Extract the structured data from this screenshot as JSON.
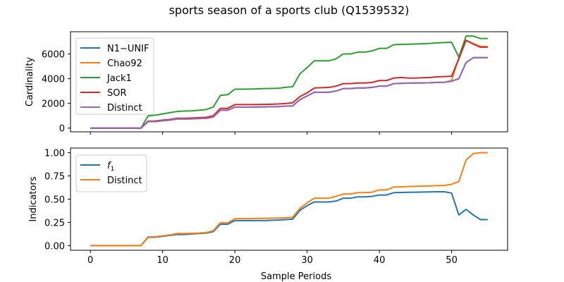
{
  "title": "sports season of a sports club (Q1539532)",
  "chart_data": [
    {
      "type": "line",
      "ylabel": "Cardinality",
      "xlabel": "",
      "xlim": [
        -2.75,
        57.75
      ],
      "ylim": [
        -300,
        7800
      ],
      "xticks": [
        0,
        10,
        20,
        30,
        40,
        50
      ],
      "yticks": [
        0,
        2000,
        4000,
        6000
      ],
      "ytick_labels": [
        "0",
        "2000",
        "4000",
        "6000"
      ],
      "legend_position": "upper-left",
      "x": [
        0,
        1,
        2,
        3,
        4,
        5,
        6,
        7,
        8,
        9,
        10,
        11,
        12,
        13,
        14,
        15,
        16,
        17,
        18,
        19,
        20,
        21,
        22,
        23,
        24,
        25,
        26,
        27,
        28,
        29,
        30,
        31,
        32,
        33,
        34,
        35,
        36,
        37,
        38,
        39,
        40,
        41,
        42,
        43,
        44,
        45,
        46,
        47,
        48,
        49,
        50,
        51,
        52,
        53,
        54,
        55
      ],
      "series": [
        {
          "name": "N1−UNIF",
          "color": "#1f77b4",
          "values": [
            0,
            0,
            0,
            0,
            0,
            0,
            0,
            0,
            530,
            530,
            600,
            650,
            740,
            740,
            750,
            780,
            790,
            900,
            1450,
            1450,
            1700,
            1700,
            1700,
            1710,
            1720,
            1730,
            1740,
            1780,
            1800,
            2300,
            2600,
            2900,
            2900,
            2900,
            3000,
            3200,
            3200,
            3250,
            3250,
            3300,
            3400,
            3400,
            3600,
            3620,
            3640,
            3650,
            3660,
            3670,
            3700,
            3710,
            3800,
            4000,
            5300,
            5700,
            5700,
            5700
          ]
        },
        {
          "name": "Chao92",
          "color": "#ff7f0e",
          "values": [
            0,
            0,
            0,
            0,
            0,
            0,
            0,
            0,
            530,
            530,
            600,
            650,
            740,
            740,
            750,
            780,
            790,
            900,
            1450,
            1450,
            1700,
            1700,
            1700,
            1710,
            1720,
            1730,
            1740,
            1780,
            1800,
            2300,
            2600,
            2900,
            2900,
            2900,
            3000,
            3200,
            3200,
            3250,
            3250,
            3300,
            3400,
            3400,
            3600,
            3620,
            3640,
            3650,
            3660,
            3670,
            3700,
            3710,
            3850,
            5700,
            7100,
            6850,
            6600,
            6600
          ]
        },
        {
          "name": "Jack1",
          "color": "#2ca02c",
          "values": [
            0,
            0,
            0,
            0,
            0,
            0,
            0,
            0,
            1000,
            1050,
            1150,
            1250,
            1350,
            1380,
            1400,
            1450,
            1500,
            1700,
            2650,
            2700,
            3150,
            3150,
            3160,
            3170,
            3200,
            3210,
            3220,
            3300,
            3350,
            4400,
            4900,
            5450,
            5450,
            5450,
            5600,
            6000,
            6000,
            6150,
            6150,
            6250,
            6450,
            6450,
            6750,
            6770,
            6790,
            6810,
            6830,
            6850,
            6900,
            6920,
            6950,
            5750,
            7450,
            7450,
            7250,
            7250
          ]
        },
        {
          "name": "SOR",
          "color": "#d62728",
          "values": [
            0,
            0,
            0,
            0,
            0,
            0,
            0,
            0,
            570,
            580,
            650,
            700,
            800,
            800,
            820,
            850,
            870,
            1000,
            1600,
            1600,
            1900,
            1900,
            1900,
            1910,
            1920,
            1930,
            1950,
            1990,
            2050,
            2550,
            2850,
            3250,
            3270,
            3290,
            3400,
            3600,
            3600,
            3650,
            3650,
            3700,
            3850,
            3850,
            4050,
            4100,
            4050,
            4050,
            4080,
            4100,
            4150,
            4170,
            4200,
            5600,
            7100,
            6800,
            6550,
            6550
          ]
        },
        {
          "name": "Distinct",
          "color": "#9467bd",
          "values": [
            0,
            0,
            0,
            0,
            0,
            0,
            0,
            0,
            530,
            530,
            600,
            650,
            740,
            740,
            750,
            780,
            790,
            900,
            1450,
            1450,
            1700,
            1700,
            1700,
            1710,
            1720,
            1730,
            1740,
            1780,
            1800,
            2300,
            2600,
            2900,
            2900,
            2900,
            3000,
            3200,
            3200,
            3250,
            3250,
            3300,
            3400,
            3400,
            3600,
            3620,
            3640,
            3650,
            3660,
            3670,
            3700,
            3710,
            3800,
            4000,
            5300,
            5700,
            5700,
            5700
          ]
        }
      ]
    },
    {
      "type": "line",
      "ylabel": "Indicators",
      "xlabel": "Sample Periods",
      "xlim": [
        -2.75,
        57.75
      ],
      "ylim": [
        -0.05,
        1.05
      ],
      "xticks": [
        0,
        10,
        20,
        30,
        40,
        50
      ],
      "xtick_labels": [
        "0",
        "10",
        "20",
        "30",
        "40",
        "50"
      ],
      "yticks": [
        0,
        0.25,
        0.5,
        0.75,
        1.0
      ],
      "ytick_labels": [
        "0.00",
        "0.25",
        "0.50",
        "0.75",
        "1.00"
      ],
      "legend_position": "upper-left",
      "x": [
        0,
        1,
        2,
        3,
        4,
        5,
        6,
        7,
        8,
        9,
        10,
        11,
        12,
        13,
        14,
        15,
        16,
        17,
        18,
        19,
        20,
        21,
        22,
        23,
        24,
        25,
        26,
        27,
        28,
        29,
        30,
        31,
        32,
        33,
        34,
        35,
        36,
        37,
        38,
        39,
        40,
        41,
        42,
        43,
        44,
        45,
        46,
        47,
        48,
        49,
        50,
        51,
        52,
        53,
        54,
        55
      ],
      "series": [
        {
          "name": "f1",
          "name_base": "f",
          "name_sub": "1",
          "color": "#1f77b4",
          "values": [
            0,
            0,
            0,
            0,
            0,
            0,
            0,
            0,
            0.09,
            0.09,
            0.1,
            0.11,
            0.12,
            0.12,
            0.125,
            0.13,
            0.135,
            0.15,
            0.23,
            0.23,
            0.27,
            0.27,
            0.27,
            0.27,
            0.27,
            0.272,
            0.275,
            0.28,
            0.285,
            0.38,
            0.43,
            0.47,
            0.47,
            0.47,
            0.48,
            0.51,
            0.51,
            0.525,
            0.525,
            0.53,
            0.545,
            0.545,
            0.57,
            0.572,
            0.574,
            0.575,
            0.577,
            0.578,
            0.58,
            0.58,
            0.565,
            0.33,
            0.39,
            0.33,
            0.28,
            0.28
          ]
        },
        {
          "name": "Distinct",
          "color": "#ff7f0e",
          "values": [
            0,
            0,
            0,
            0,
            0,
            0,
            0,
            0,
            0.095,
            0.095,
            0.105,
            0.115,
            0.13,
            0.13,
            0.132,
            0.135,
            0.14,
            0.16,
            0.245,
            0.245,
            0.29,
            0.29,
            0.29,
            0.292,
            0.293,
            0.295,
            0.297,
            0.3,
            0.305,
            0.4,
            0.46,
            0.51,
            0.51,
            0.51,
            0.53,
            0.555,
            0.555,
            0.57,
            0.57,
            0.575,
            0.6,
            0.6,
            0.63,
            0.633,
            0.636,
            0.638,
            0.64,
            0.642,
            0.645,
            0.648,
            0.66,
            0.69,
            0.92,
            0.99,
            1.0,
            1.0
          ]
        }
      ]
    }
  ]
}
